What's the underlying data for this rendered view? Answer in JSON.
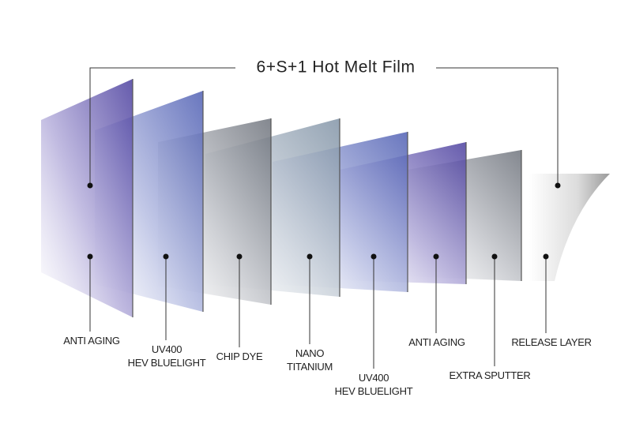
{
  "title": "6+S+1 Hot Melt Film",
  "layers": [
    {
      "label": [
        "ANTI AGING"
      ]
    },
    {
      "label": [
        "UV400",
        "HEV BLUELIGHT"
      ]
    },
    {
      "label": [
        "CHIP DYE"
      ]
    },
    {
      "label": [
        "NANO",
        "TITANIUM"
      ]
    },
    {
      "label": [
        "UV400",
        "HEV BLUELIGHT"
      ]
    },
    {
      "label": [
        "ANTI AGING"
      ]
    },
    {
      "label": [
        "EXTRA SPUTTER"
      ]
    },
    {
      "label": [
        "RELEASE LAYER"
      ]
    }
  ]
}
